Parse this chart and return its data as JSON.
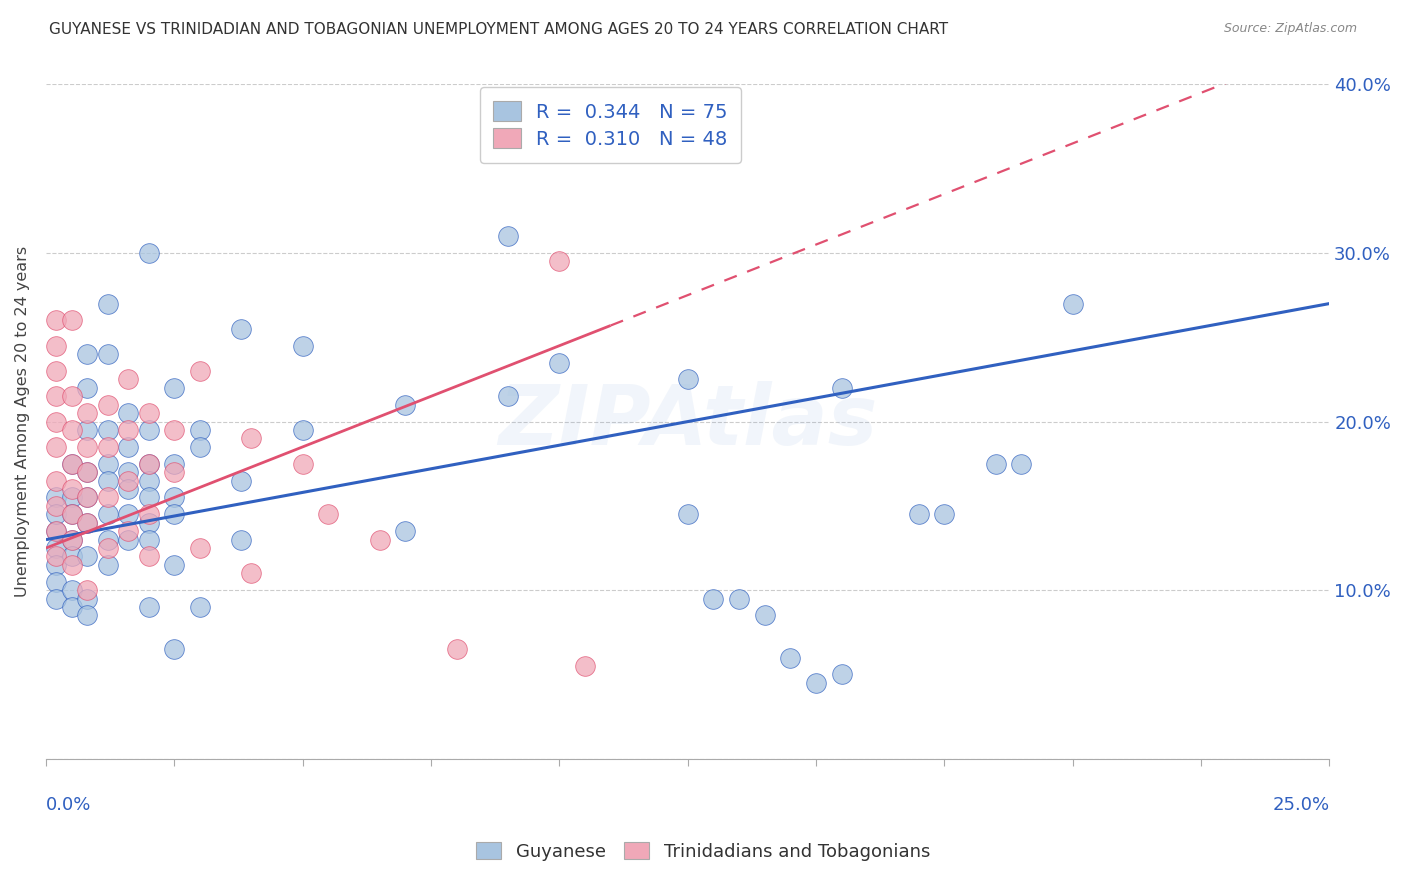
{
  "title": "GUYANESE VS TRINIDADIAN AND TOBAGONIAN UNEMPLOYMENT AMONG AGES 20 TO 24 YEARS CORRELATION CHART",
  "source": "Source: ZipAtlas.com",
  "xlabel_bottom_left": "0.0%",
  "xlabel_bottom_right": "25.0%",
  "ylabel": "Unemployment Among Ages 20 to 24 years",
  "xlim": [
    0.0,
    0.25
  ],
  "ylim": [
    0.0,
    0.4
  ],
  "ytick_labels": [
    "",
    "10.0%",
    "20.0%",
    "30.0%",
    "40.0%"
  ],
  "ytick_vals": [
    0.0,
    0.1,
    0.2,
    0.3,
    0.4
  ],
  "blue_R": 0.344,
  "blue_N": 75,
  "pink_R": 0.31,
  "pink_N": 48,
  "blue_color": "#a8c4e0",
  "pink_color": "#f0a8b8",
  "blue_line_color": "#3060c0",
  "pink_line_color": "#e05070",
  "legend_label_blue": "Guyanese",
  "legend_label_pink": "Trinidadians and Tobagonians",
  "watermark": "ZIPAtlas",
  "background_color": "#ffffff",
  "title_fontsize": 11,
  "blue_line_y0": 0.13,
  "blue_line_y1": 0.27,
  "pink_line_y0": 0.125,
  "pink_line_y1_solid_x": 0.11,
  "pink_line_slope": 1.2,
  "blue_scatter": [
    [
      0.002,
      0.155
    ],
    [
      0.002,
      0.135
    ],
    [
      0.002,
      0.125
    ],
    [
      0.002,
      0.115
    ],
    [
      0.002,
      0.105
    ],
    [
      0.002,
      0.145
    ],
    [
      0.002,
      0.095
    ],
    [
      0.005,
      0.175
    ],
    [
      0.005,
      0.155
    ],
    [
      0.005,
      0.145
    ],
    [
      0.005,
      0.13
    ],
    [
      0.005,
      0.12
    ],
    [
      0.005,
      0.1
    ],
    [
      0.005,
      0.09
    ],
    [
      0.008,
      0.24
    ],
    [
      0.008,
      0.22
    ],
    [
      0.008,
      0.195
    ],
    [
      0.008,
      0.17
    ],
    [
      0.008,
      0.155
    ],
    [
      0.008,
      0.14
    ],
    [
      0.008,
      0.12
    ],
    [
      0.008,
      0.095
    ],
    [
      0.008,
      0.085
    ],
    [
      0.012,
      0.27
    ],
    [
      0.012,
      0.24
    ],
    [
      0.012,
      0.195
    ],
    [
      0.012,
      0.175
    ],
    [
      0.012,
      0.165
    ],
    [
      0.012,
      0.145
    ],
    [
      0.012,
      0.13
    ],
    [
      0.012,
      0.115
    ],
    [
      0.016,
      0.205
    ],
    [
      0.016,
      0.185
    ],
    [
      0.016,
      0.17
    ],
    [
      0.016,
      0.16
    ],
    [
      0.016,
      0.145
    ],
    [
      0.016,
      0.13
    ],
    [
      0.02,
      0.3
    ],
    [
      0.02,
      0.195
    ],
    [
      0.02,
      0.175
    ],
    [
      0.02,
      0.165
    ],
    [
      0.02,
      0.155
    ],
    [
      0.02,
      0.14
    ],
    [
      0.02,
      0.13
    ],
    [
      0.02,
      0.09
    ],
    [
      0.025,
      0.22
    ],
    [
      0.025,
      0.175
    ],
    [
      0.025,
      0.155
    ],
    [
      0.025,
      0.145
    ],
    [
      0.025,
      0.115
    ],
    [
      0.025,
      0.065
    ],
    [
      0.03,
      0.195
    ],
    [
      0.03,
      0.185
    ],
    [
      0.03,
      0.09
    ],
    [
      0.038,
      0.255
    ],
    [
      0.038,
      0.165
    ],
    [
      0.038,
      0.13
    ],
    [
      0.05,
      0.245
    ],
    [
      0.05,
      0.195
    ],
    [
      0.07,
      0.21
    ],
    [
      0.07,
      0.135
    ],
    [
      0.09,
      0.31
    ],
    [
      0.09,
      0.215
    ],
    [
      0.1,
      0.235
    ],
    [
      0.125,
      0.225
    ],
    [
      0.125,
      0.145
    ],
    [
      0.155,
      0.22
    ],
    [
      0.185,
      0.175
    ],
    [
      0.19,
      0.175
    ],
    [
      0.2,
      0.27
    ],
    [
      0.17,
      0.145
    ],
    [
      0.175,
      0.145
    ],
    [
      0.13,
      0.095
    ],
    [
      0.135,
      0.095
    ],
    [
      0.14,
      0.085
    ],
    [
      0.145,
      0.06
    ],
    [
      0.15,
      0.045
    ],
    [
      0.155,
      0.05
    ]
  ],
  "pink_scatter": [
    [
      0.002,
      0.26
    ],
    [
      0.002,
      0.245
    ],
    [
      0.002,
      0.23
    ],
    [
      0.002,
      0.215
    ],
    [
      0.002,
      0.2
    ],
    [
      0.002,
      0.185
    ],
    [
      0.002,
      0.165
    ],
    [
      0.002,
      0.15
    ],
    [
      0.002,
      0.135
    ],
    [
      0.002,
      0.12
    ],
    [
      0.005,
      0.26
    ],
    [
      0.005,
      0.215
    ],
    [
      0.005,
      0.195
    ],
    [
      0.005,
      0.175
    ],
    [
      0.005,
      0.16
    ],
    [
      0.005,
      0.145
    ],
    [
      0.005,
      0.13
    ],
    [
      0.005,
      0.115
    ],
    [
      0.008,
      0.205
    ],
    [
      0.008,
      0.185
    ],
    [
      0.008,
      0.17
    ],
    [
      0.008,
      0.155
    ],
    [
      0.008,
      0.14
    ],
    [
      0.008,
      0.1
    ],
    [
      0.012,
      0.21
    ],
    [
      0.012,
      0.185
    ],
    [
      0.012,
      0.155
    ],
    [
      0.012,
      0.125
    ],
    [
      0.016,
      0.225
    ],
    [
      0.016,
      0.195
    ],
    [
      0.016,
      0.165
    ],
    [
      0.016,
      0.135
    ],
    [
      0.02,
      0.205
    ],
    [
      0.02,
      0.175
    ],
    [
      0.02,
      0.145
    ],
    [
      0.02,
      0.12
    ],
    [
      0.025,
      0.195
    ],
    [
      0.025,
      0.17
    ],
    [
      0.03,
      0.23
    ],
    [
      0.03,
      0.125
    ],
    [
      0.04,
      0.19
    ],
    [
      0.04,
      0.11
    ],
    [
      0.05,
      0.175
    ],
    [
      0.055,
      0.145
    ],
    [
      0.065,
      0.13
    ],
    [
      0.08,
      0.065
    ],
    [
      0.1,
      0.295
    ],
    [
      0.105,
      0.055
    ]
  ]
}
